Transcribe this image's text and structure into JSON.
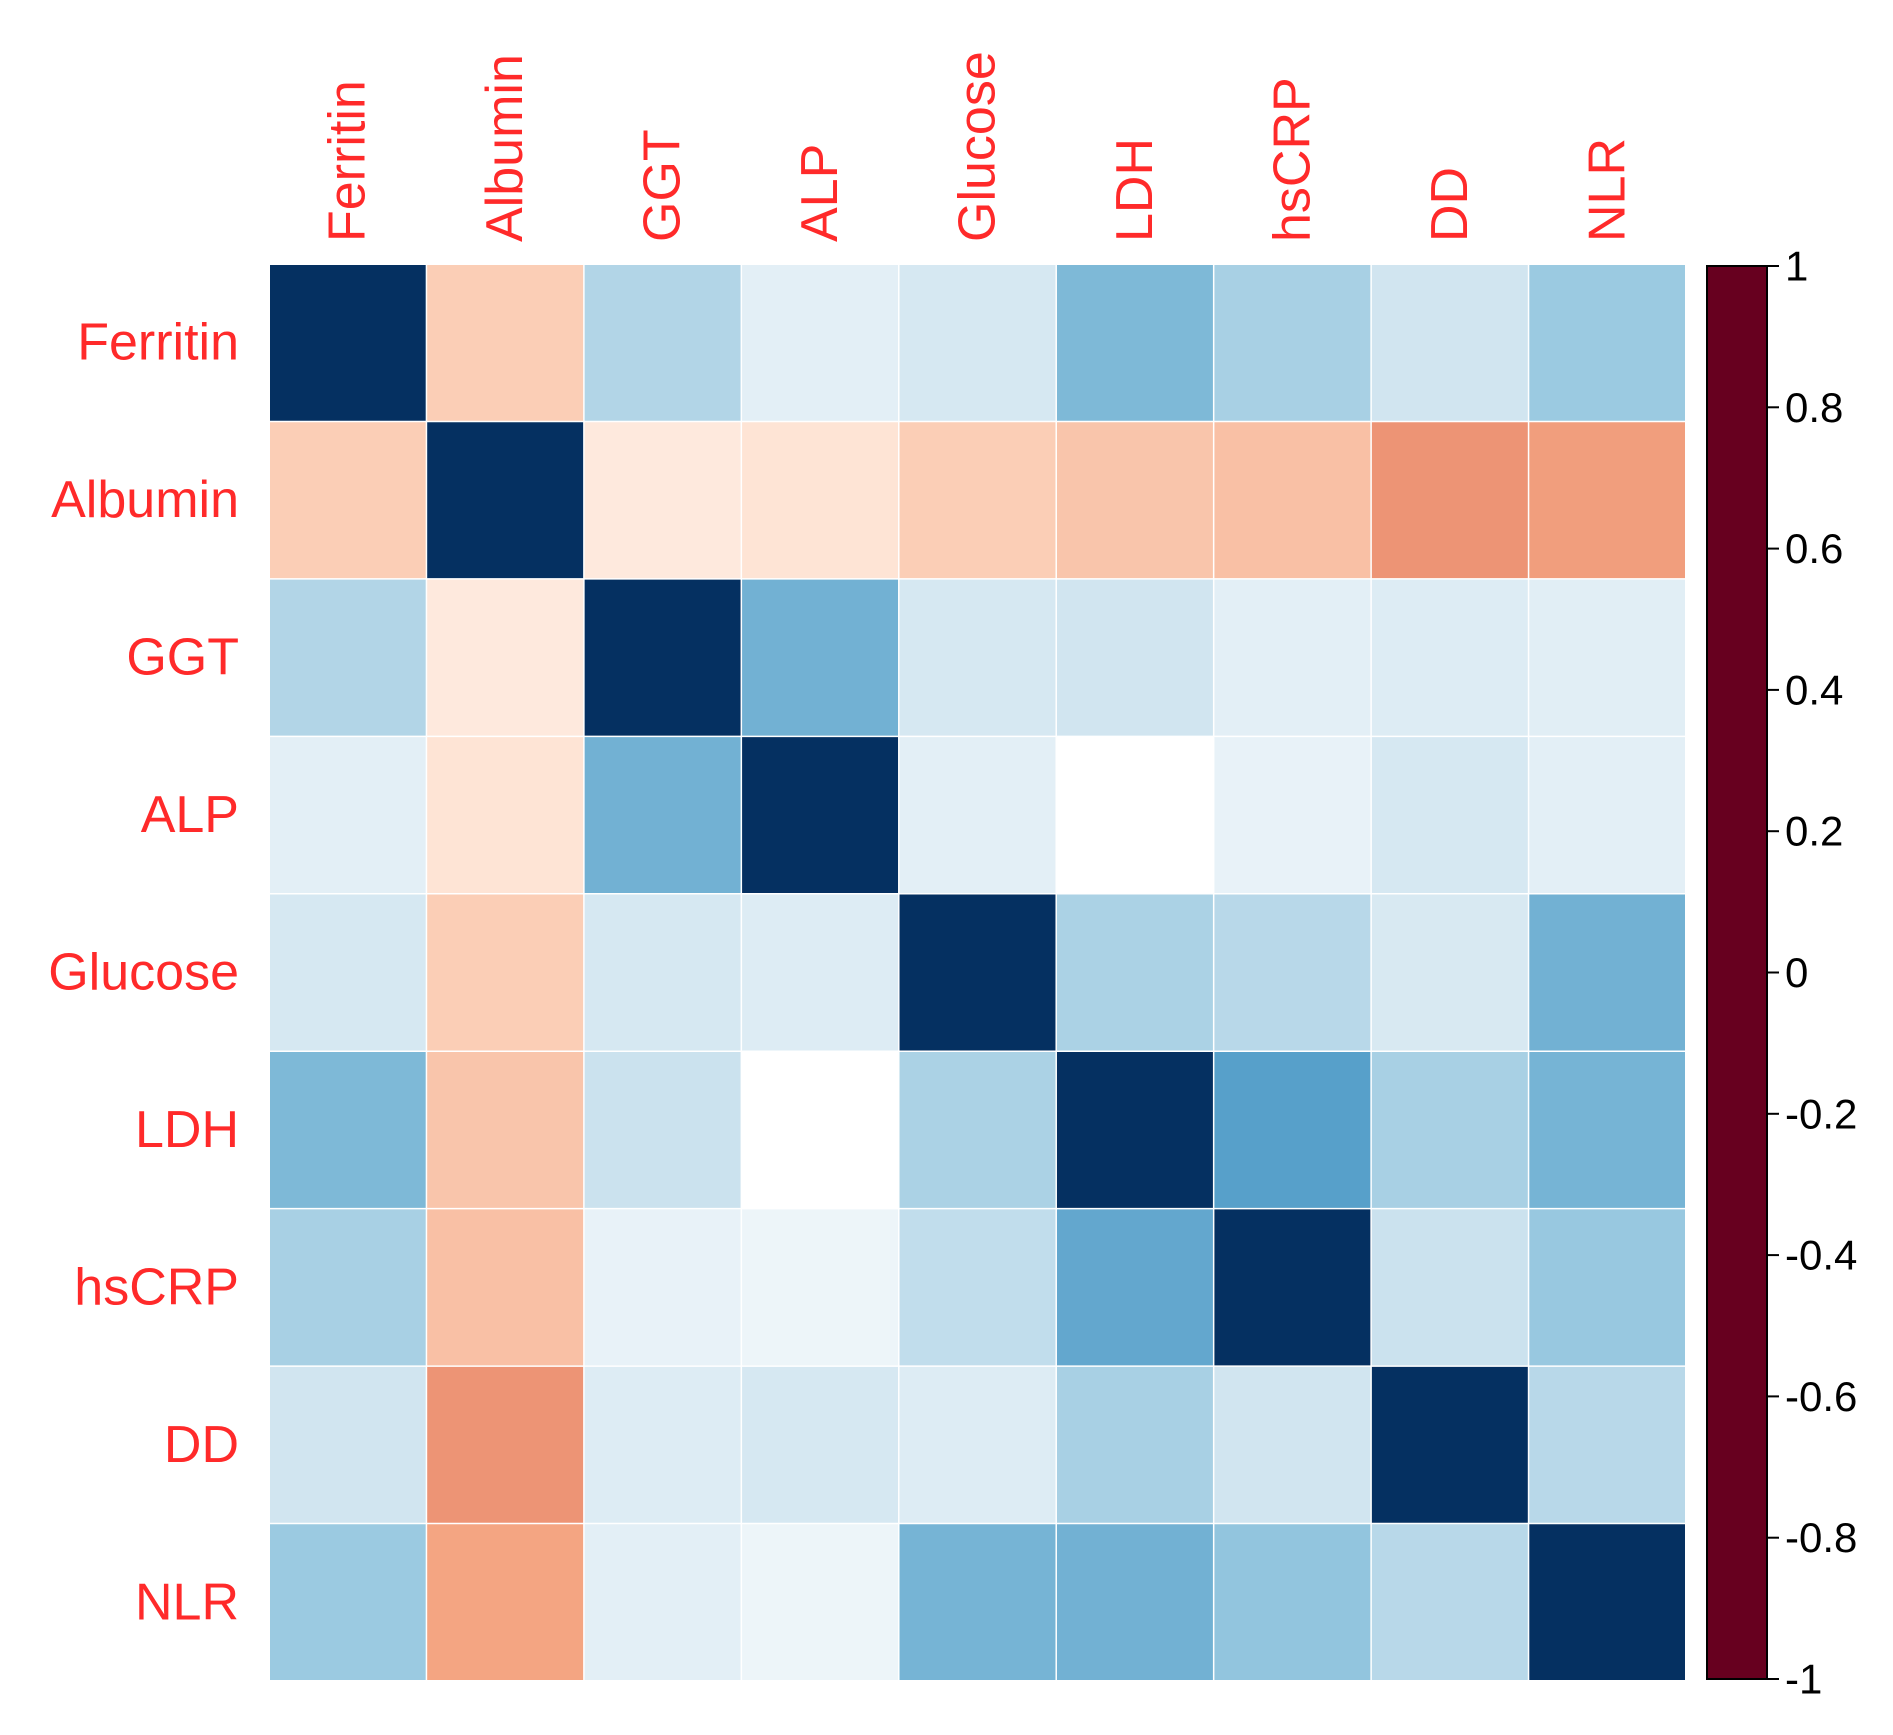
{
  "chart_data": {
    "type": "heatmap",
    "title": "",
    "labels": [
      "Ferritin",
      "Albumin",
      "GGT",
      "ALP",
      "Glucose",
      "LDH",
      "hsCRP",
      "DD",
      "NLR"
    ],
    "matrix": [
      [
        1.0,
        -0.25,
        0.3,
        0.12,
        0.18,
        0.45,
        0.33,
        0.2,
        0.37
      ],
      [
        -0.25,
        1.0,
        -0.12,
        -0.15,
        -0.25,
        -0.28,
        -0.3,
        -0.45,
        -0.42
      ],
      [
        0.3,
        -0.12,
        1.0,
        0.48,
        0.18,
        0.2,
        0.12,
        0.15,
        0.13
      ],
      [
        0.12,
        -0.15,
        0.48,
        1.0,
        0.12,
        0.0,
        0.1,
        0.18,
        0.12
      ],
      [
        0.18,
        -0.25,
        0.18,
        0.15,
        1.0,
        0.32,
        0.28,
        0.17,
        0.48
      ],
      [
        0.45,
        -0.28,
        0.22,
        0.0,
        0.32,
        1.0,
        0.55,
        0.33,
        0.47
      ],
      [
        0.33,
        -0.3,
        0.1,
        0.08,
        0.25,
        0.52,
        1.0,
        0.22,
        0.38
      ],
      [
        0.2,
        -0.45,
        0.15,
        0.18,
        0.15,
        0.33,
        0.2,
        1.0,
        0.28
      ],
      [
        0.37,
        -0.4,
        0.12,
        0.08,
        0.47,
        0.48,
        0.4,
        0.28,
        1.0
      ]
    ],
    "color_scale": {
      "min": -1,
      "max": 1,
      "stops": [
        {
          "v": -1.0,
          "color": "#67001f"
        },
        {
          "v": -0.8,
          "color": "#b2182b"
        },
        {
          "v": -0.6,
          "color": "#d6604d"
        },
        {
          "v": -0.4,
          "color": "#f4a582"
        },
        {
          "v": -0.2,
          "color": "#fddbc7"
        },
        {
          "v": 0.0,
          "color": "#ffffff"
        },
        {
          "v": 0.2,
          "color": "#d1e5f0"
        },
        {
          "v": 0.4,
          "color": "#92c5de"
        },
        {
          "v": 0.6,
          "color": "#4393c3"
        },
        {
          "v": 0.8,
          "color": "#2166ac"
        },
        {
          "v": 1.0,
          "color": "#053061"
        }
      ]
    },
    "colorbar_ticks": [
      "1",
      "0.8",
      "0.6",
      "0.4",
      "0.2",
      "0",
      "-0.2",
      "-0.4",
      "-0.6",
      "-0.8",
      "-1"
    ],
    "label_color": "#ff2a2a",
    "legend_placement": "right"
  }
}
